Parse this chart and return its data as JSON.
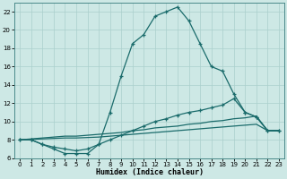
{
  "xlabel": "Humidex (Indice chaleur)",
  "bg_color": "#cde8e5",
  "grid_color": "#aacfcc",
  "line_color": "#1a6b6b",
  "xlim": [
    -0.5,
    23.5
  ],
  "ylim": [
    6,
    23
  ],
  "xticks": [
    0,
    1,
    2,
    3,
    4,
    5,
    6,
    7,
    8,
    9,
    10,
    11,
    12,
    13,
    14,
    15,
    16,
    17,
    18,
    19,
    20,
    21,
    22,
    23
  ],
  "yticks": [
    6,
    8,
    10,
    12,
    14,
    16,
    18,
    20,
    22
  ],
  "line1_y": [
    8.0,
    8.0,
    7.5,
    7.0,
    6.5,
    6.5,
    6.5,
    7.5,
    11.0,
    15.0,
    18.5,
    19.5,
    21.5,
    22.0,
    22.5,
    21.0,
    18.5,
    16.0,
    15.5,
    13.0,
    11.0,
    10.5,
    9.0,
    9.0
  ],
  "line2_y": [
    8.0,
    8.0,
    7.5,
    7.2,
    7.0,
    6.8,
    7.0,
    7.5,
    8.0,
    8.5,
    9.0,
    9.5,
    10.0,
    10.3,
    10.7,
    11.0,
    11.2,
    11.5,
    11.8,
    12.5,
    11.0,
    10.5,
    9.0,
    9.0
  ],
  "line3_y": [
    8.0,
    8.1,
    8.2,
    8.3,
    8.4,
    8.4,
    8.5,
    8.6,
    8.7,
    8.8,
    9.0,
    9.1,
    9.3,
    9.4,
    9.5,
    9.7,
    9.8,
    10.0,
    10.1,
    10.3,
    10.4,
    10.6,
    9.0,
    9.0
  ],
  "line4_y": [
    8.0,
    8.05,
    8.1,
    8.15,
    8.2,
    8.2,
    8.25,
    8.3,
    8.4,
    8.5,
    8.6,
    8.7,
    8.8,
    8.9,
    9.0,
    9.1,
    9.2,
    9.3,
    9.4,
    9.5,
    9.6,
    9.7,
    9.0,
    9.0
  ]
}
